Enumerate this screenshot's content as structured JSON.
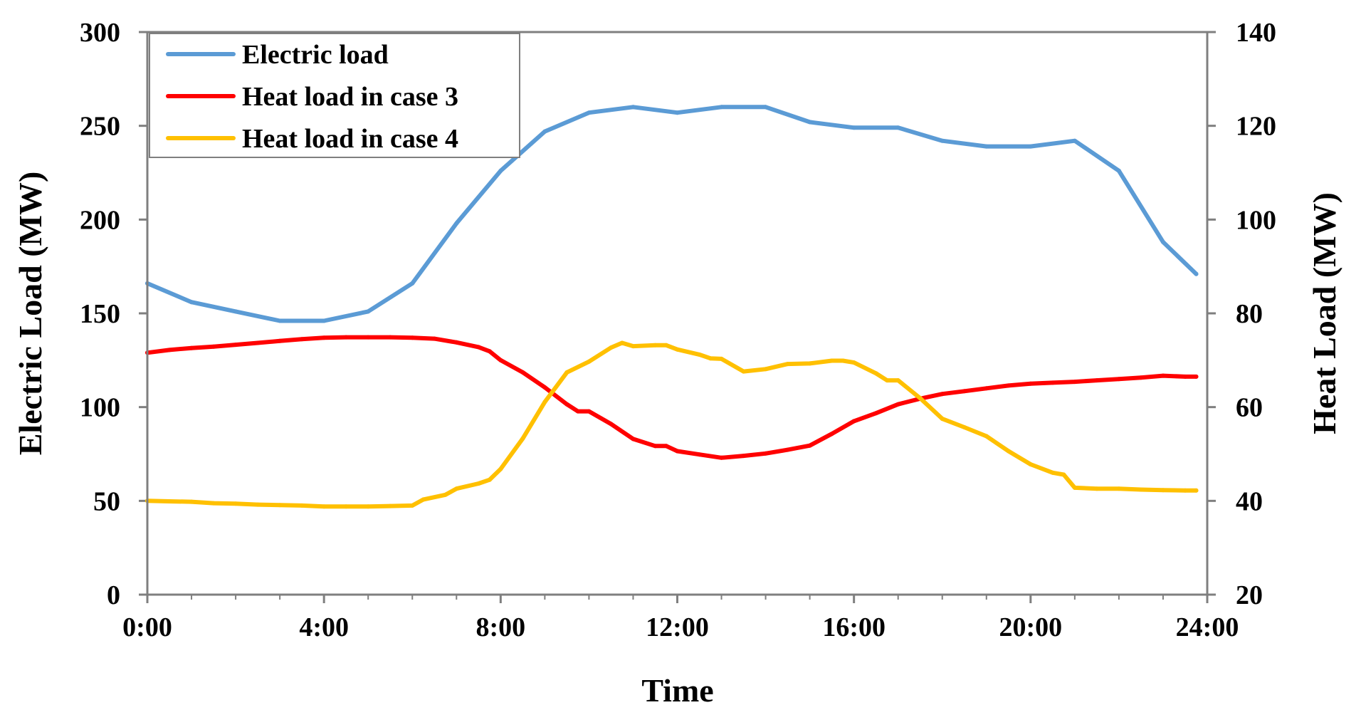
{
  "chart_data": {
    "type": "line",
    "title": "",
    "xlabel": "Time",
    "ylabel_left": "Electric Load (MW)",
    "ylabel_right": "Heat Load (MW)",
    "xlim": [
      0,
      24
    ],
    "ylim_left": [
      0,
      300
    ],
    "ylim_right": [
      20,
      140
    ],
    "x_ticks": [
      0,
      4,
      8,
      12,
      16,
      20,
      24
    ],
    "x_tick_labels": [
      "0:00",
      "4:00",
      "8:00",
      "12:00",
      "16:00",
      "20:00",
      "24:00"
    ],
    "y_left_ticks": [
      0,
      50,
      100,
      150,
      200,
      250,
      300
    ],
    "y_left_tick_labels": [
      "0",
      "50",
      "100",
      "150",
      "200",
      "250",
      "300"
    ],
    "y_right_ticks": [
      20,
      40,
      60,
      80,
      100,
      120,
      140
    ],
    "y_right_tick_labels": [
      "20",
      "40",
      "60",
      "80",
      "100",
      "120",
      "140"
    ],
    "legend_position": "top-left",
    "grid": false,
    "series": [
      {
        "name": "Electric load",
        "axis": "left",
        "color": "#5b9bd5",
        "x": [
          0,
          1,
          2,
          3,
          4,
          5,
          6,
          7,
          8,
          9,
          10,
          11,
          12,
          13,
          14,
          15,
          16,
          17,
          18,
          19,
          20,
          21,
          22,
          23,
          23.75
        ],
        "y": [
          166,
          156,
          151,
          146,
          146,
          151,
          166,
          198,
          226,
          247,
          257,
          260,
          257,
          260,
          260,
          252,
          249,
          249,
          242,
          239,
          239,
          242,
          226,
          188,
          171
        ]
      },
      {
        "name": "Heat load in case 3",
        "axis": "right",
        "color": "#ff0000",
        "x": [
          0,
          0.5,
          1,
          1.5,
          2,
          2.5,
          3,
          3.5,
          4,
          4.5,
          5,
          5.5,
          6,
          6.5,
          7,
          7.5,
          7.75,
          8,
          8.5,
          9,
          9.5,
          9.75,
          10,
          10.5,
          11,
          11.5,
          11.75,
          12,
          12.5,
          13,
          13.5,
          14,
          14.5,
          15,
          15.5,
          16,
          16.5,
          17,
          17.5,
          18,
          18.5,
          19,
          19.5,
          20,
          20.5,
          21,
          21.5,
          22,
          22.5,
          23,
          23.5,
          23.75
        ],
        "y": [
          71.6,
          72.2,
          72.6,
          72.9,
          73.3,
          73.7,
          74.1,
          74.5,
          74.8,
          74.9,
          74.9,
          74.9,
          74.8,
          74.6,
          73.8,
          72.8,
          71.9,
          70,
          67.4,
          64.2,
          60.6,
          59.1,
          59.1,
          56.4,
          53.2,
          51.7,
          51.7,
          50.6,
          49.9,
          49.2,
          49.6,
          50.1,
          50.9,
          51.8,
          54.3,
          57,
          58.7,
          60.6,
          61.8,
          62.8,
          63.4,
          64,
          64.6,
          65,
          65.2,
          65.4,
          65.7,
          66,
          66.3,
          66.7,
          66.5,
          66.5
        ]
      },
      {
        "name": "Heat load in case 4",
        "axis": "right",
        "color": "#ffc000",
        "x": [
          0,
          0.5,
          1,
          1.5,
          2,
          2.5,
          3,
          3.5,
          4,
          4.5,
          5,
          5.5,
          6,
          6.25,
          6.75,
          7,
          7.5,
          7.75,
          8,
          8.5,
          9,
          9.5,
          10,
          10.5,
          10.75,
          11,
          11.5,
          11.75,
          12,
          12.5,
          12.75,
          13,
          13.5,
          14,
          14.5,
          15,
          15.5,
          15.75,
          16,
          16.5,
          16.75,
          17,
          17.5,
          18,
          18.5,
          19,
          19.5,
          20,
          20.5,
          20.75,
          21,
          21.5,
          22,
          22.5,
          23,
          23.5,
          23.75
        ],
        "y": [
          40,
          39.9,
          39.8,
          39.5,
          39.4,
          39.2,
          39.1,
          39,
          38.8,
          38.8,
          38.8,
          38.9,
          39,
          40.3,
          41.3,
          42.6,
          43.7,
          44.5,
          46.8,
          53.3,
          61.1,
          67.4,
          69.7,
          72.7,
          73.7,
          73,
          73.2,
          73.2,
          72.3,
          71.2,
          70.4,
          70.3,
          67.6,
          68.1,
          69.2,
          69.3,
          69.9,
          69.9,
          69.5,
          67.2,
          65.7,
          65.7,
          61.9,
          57.5,
          55.7,
          53.8,
          50.6,
          47.8,
          46,
          45.6,
          42.8,
          42.6,
          42.6,
          42.4,
          42.3,
          42.2,
          42.2
        ]
      }
    ]
  }
}
